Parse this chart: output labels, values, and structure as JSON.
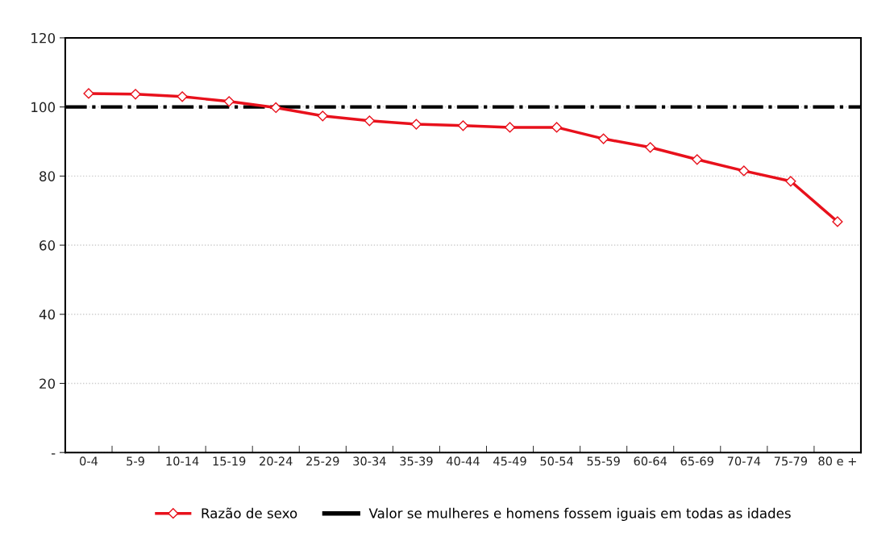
{
  "chart_data": {
    "type": "line",
    "categories": [
      "0-4",
      "5-9",
      "10-14",
      "15-19",
      "20-24",
      "25-29",
      "30-34",
      "35-39",
      "40-44",
      "45-49",
      "50-54",
      "55-59",
      "60-64",
      "65-69",
      "70-74",
      "75-79",
      "80 e +"
    ],
    "series": [
      {
        "name": "Razão de sexo",
        "color": "#e8111c",
        "values": [
          103.9,
          103.7,
          103.0,
          101.6,
          99.8,
          97.4,
          96.0,
          95.0,
          94.6,
          94.1,
          94.1,
          90.8,
          88.3,
          84.8,
          81.5,
          78.5,
          66.8
        ]
      }
    ],
    "ref_lines": [
      {
        "axis": "y",
        "value": 100,
        "label": "Valor se mulheres e homens fossem iguais em todas as idades",
        "color": "#000000",
        "line_style": "dashdot"
      }
    ],
    "ylim": [
      0,
      120
    ],
    "yticks": [
      {
        "value": 0,
        "label": "-"
      },
      20,
      40,
      60,
      80,
      100,
      120
    ],
    "grid": "y",
    "legend": "bottom",
    "marker": "diamond",
    "line_style": "solid"
  }
}
